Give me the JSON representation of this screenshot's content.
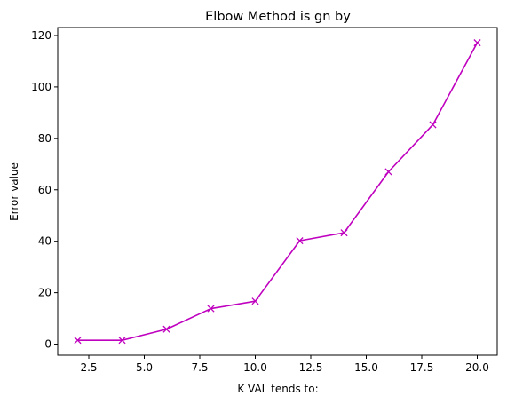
{
  "chart_data": {
    "type": "line",
    "title": "Elbow Method is gn by",
    "xlabel": "K VAL tends to:",
    "ylabel": "Error value",
    "x": [
      2,
      4,
      6,
      8,
      10,
      12,
      14,
      16,
      18,
      20
    ],
    "series": [
      {
        "values": [
          1.5,
          1.5,
          5.8,
          13.8,
          16.7,
          40.2,
          43.3,
          67.0,
          85.3,
          117.2
        ],
        "color": "#bf00bf",
        "marker": "x"
      }
    ],
    "xlim": [
      1.1,
      20.9
    ],
    "ylim": [
      -4.3,
      123.1
    ],
    "xticks": [
      2.5,
      5.0,
      7.5,
      10.0,
      12.5,
      15.0,
      17.5,
      20.0
    ],
    "xtick_labels": [
      "2.5",
      "5.0",
      "7.5",
      "10.0",
      "12.5",
      "15.0",
      "17.5",
      "20.0"
    ],
    "yticks": [
      0,
      20,
      40,
      60,
      80,
      100,
      120
    ],
    "ytick_labels": [
      "0",
      "20",
      "40",
      "60",
      "80",
      "100",
      "120"
    ],
    "grid": false,
    "legend": "none"
  }
}
